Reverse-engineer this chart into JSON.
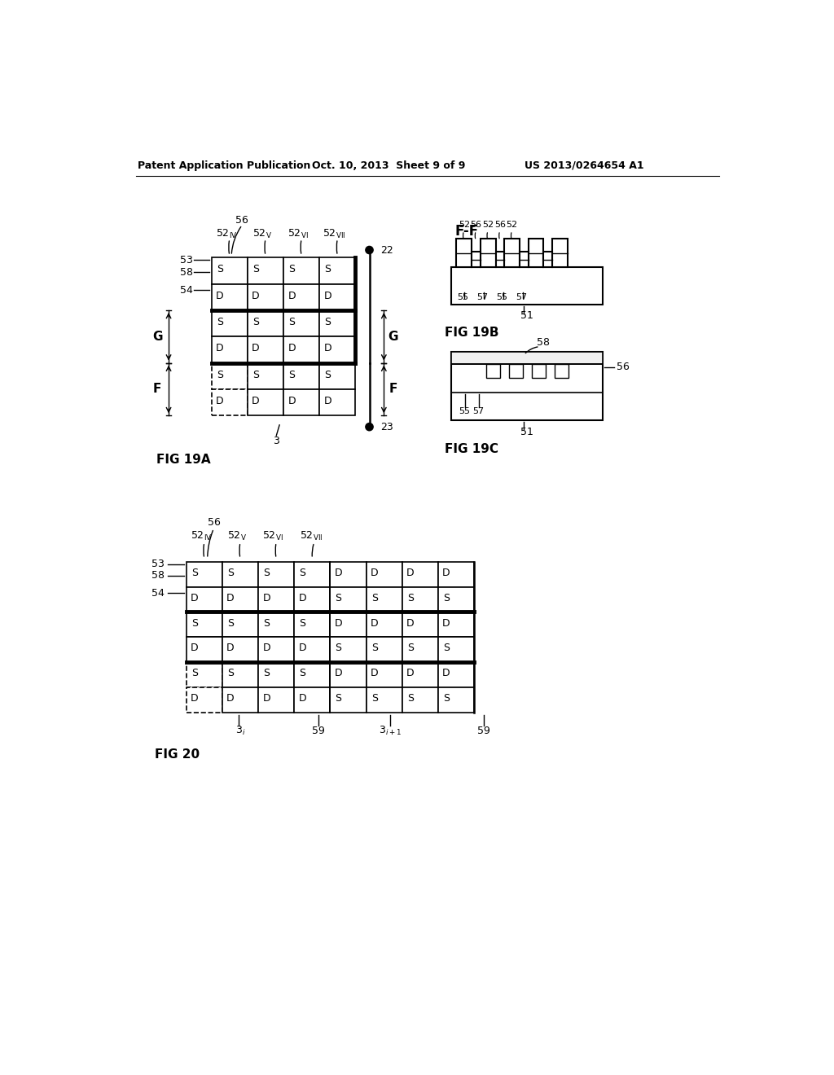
{
  "header_left": "Patent Application Publication",
  "header_center": "Oct. 10, 2013  Sheet 9 of 9",
  "header_right": "US 2013/0264654 A1",
  "bg_color": "#ffffff",
  "line_color": "#000000",
  "fig19a_label": "FIG 19A",
  "fig19b_label": "FIG 19B",
  "fig19c_label": "FIG 19C",
  "fig20_label": "FIG 20"
}
